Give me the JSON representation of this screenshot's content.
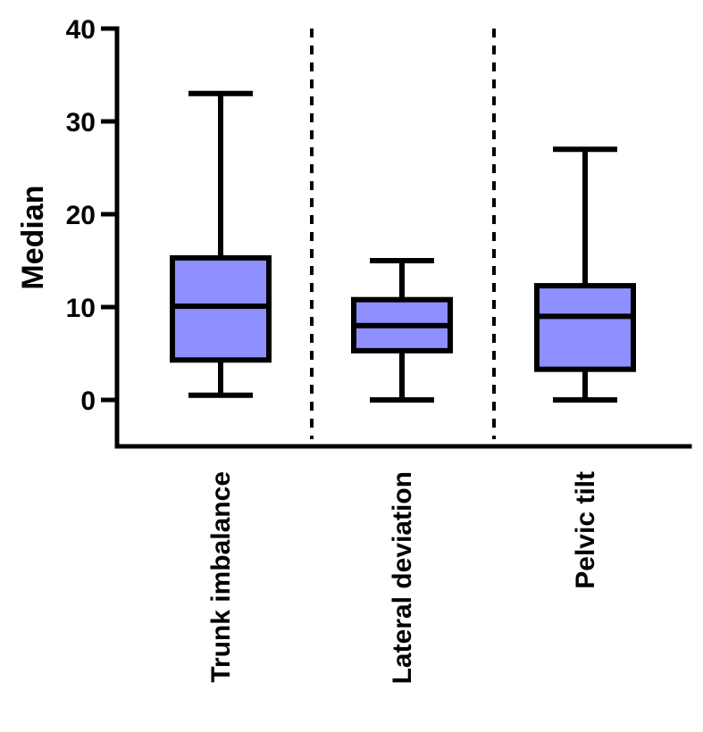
{
  "chart_data": {
    "type": "box",
    "ylabel": "Median",
    "ylim": [
      -5,
      40
    ],
    "yticks": [
      0,
      10,
      20,
      30,
      40
    ],
    "categories": [
      "Trunk imbalance",
      "Lateral deviation",
      "Pelvic tilt"
    ],
    "boxes": [
      {
        "category": "Trunk imbalance",
        "min": 0.5,
        "q1": 4.3,
        "median": 10.1,
        "q3": 15.3,
        "max": 33
      },
      {
        "category": "Lateral deviation",
        "min": 0,
        "q1": 5.3,
        "median": 8,
        "q3": 10.8,
        "max": 15
      },
      {
        "category": "Pelvic tilt",
        "min": 0,
        "q1": 3.3,
        "median": 9,
        "q3": 12.3,
        "max": 27
      }
    ],
    "box_color": "#8f8fff",
    "line_color": "#000000",
    "separators": "dashed",
    "grid": false
  }
}
